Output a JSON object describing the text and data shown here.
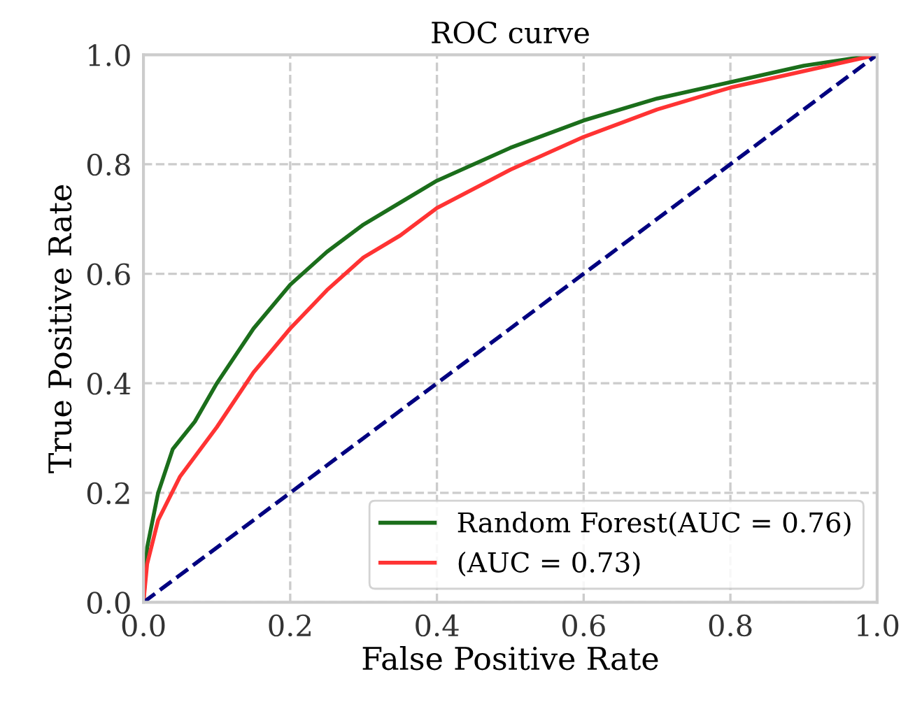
{
  "chart_data": {
    "type": "line",
    "title": "ROC curve",
    "xlabel": "False Positive Rate",
    "ylabel": "True Positive Rate",
    "xlim": [
      0.0,
      1.0
    ],
    "ylim": [
      0.0,
      1.0
    ],
    "xticks": [
      {
        "value": 0,
        "label": "0.0"
      },
      {
        "value": 0.2,
        "label": "0.2"
      },
      {
        "value": 0.4,
        "label": "0.4"
      },
      {
        "value": 0.6,
        "label": "0.6"
      },
      {
        "value": 0.8,
        "label": "0.8"
      },
      {
        "value": 1,
        "label": "1.0"
      }
    ],
    "yticks": [
      {
        "value": 0,
        "label": "0.0"
      },
      {
        "value": 0.2,
        "label": "0.2"
      },
      {
        "value": 0.4,
        "label": "0.4"
      },
      {
        "value": 0.6,
        "label": "0.6"
      },
      {
        "value": 0.8,
        "label": "0.8"
      },
      {
        "value": 1,
        "label": "1.0"
      }
    ],
    "grid": true,
    "legend": "bottom right",
    "marker": "none",
    "series": [
      {
        "name": "Random Forest(AUC = 0.76)",
        "color": "#1b6e1b",
        "line_style": "solid",
        "x": [
          0,
          0.005,
          0.02,
          0.04,
          0.07,
          0.1,
          0.15,
          0.2,
          0.25,
          0.3,
          0.35,
          0.4,
          0.5,
          0.6,
          0.7,
          0.8,
          0.9,
          1
        ],
        "values": [
          0,
          0.1,
          0.2,
          0.28,
          0.33,
          0.4,
          0.5,
          0.58,
          0.64,
          0.69,
          0.73,
          0.77,
          0.83,
          0.88,
          0.92,
          0.95,
          0.98,
          1
        ]
      },
      {
        "name": "(AUC = 0.73)",
        "color": "#ff3333",
        "line_style": "solid",
        "x": [
          0,
          0.005,
          0.02,
          0.05,
          0.1,
          0.15,
          0.2,
          0.25,
          0.3,
          0.35,
          0.4,
          0.5,
          0.6,
          0.7,
          0.8,
          0.9,
          1
        ],
        "values": [
          0,
          0.07,
          0.15,
          0.23,
          0.32,
          0.42,
          0.5,
          0.57,
          0.63,
          0.67,
          0.72,
          0.79,
          0.85,
          0.9,
          0.94,
          0.97,
          1
        ]
      },
      {
        "color": "#000080",
        "line_style": "dashed",
        "x": [
          0,
          1
        ],
        "values": [
          0,
          1
        ]
      }
    ]
  }
}
